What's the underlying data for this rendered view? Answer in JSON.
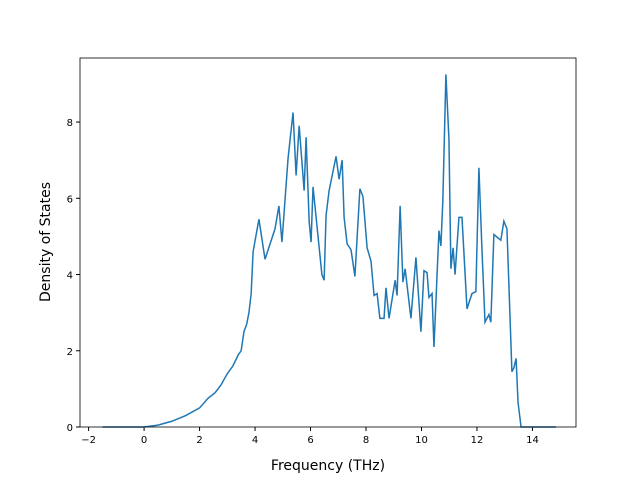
{
  "chart_data": {
    "type": "line",
    "xlabel": "Frequency (THz)",
    "ylabel": "Density of States",
    "x": [
      -1.5,
      0,
      0.5,
      1.0,
      1.5,
      2.0,
      2.3,
      2.56,
      2.77,
      3.0,
      3.2,
      3.4,
      3.5,
      3.6,
      3.7,
      3.78,
      3.86,
      3.93,
      4.14,
      4.36,
      4.72,
      4.86,
      4.97,
      5.19,
      5.37,
      5.48,
      5.59,
      5.77,
      5.84,
      5.95,
      6.02,
      6.09,
      6.41,
      6.49,
      6.56,
      6.67,
      6.92,
      7.03,
      7.14,
      7.21,
      7.32,
      7.46,
      7.6,
      7.78,
      7.89,
      8.04,
      8.18,
      8.29,
      8.4,
      8.5,
      8.65,
      8.72,
      8.83,
      9.05,
      9.12,
      9.23,
      9.33,
      9.41,
      9.62,
      9.8,
      9.98,
      10.09,
      10.2,
      10.27,
      10.38,
      10.45,
      10.63,
      10.7,
      10.77,
      10.88,
      10.99,
      11.06,
      11.14,
      11.21,
      11.35,
      11.46,
      11.64,
      11.82,
      11.96,
      12.07,
      12.18,
      12.29,
      12.43,
      12.5,
      12.61,
      12.86,
      12.97,
      13.08,
      13.26,
      13.33,
      13.41,
      13.48,
      13.59,
      14.85
    ],
    "series": [
      {
        "name": "DOS",
        "color": "#1f77b4",
        "values": [
          0,
          0,
          0.05,
          0.15,
          0.3,
          0.5,
          0.75,
          0.9,
          1.1,
          1.4,
          1.6,
          1.9,
          2.0,
          2.5,
          2.7,
          3.0,
          3.5,
          4.6,
          5.45,
          4.4,
          5.2,
          5.8,
          4.85,
          7.05,
          8.25,
          6.6,
          7.9,
          6.2,
          7.6,
          5.4,
          4.85,
          6.3,
          4.0,
          3.85,
          5.55,
          6.2,
          7.1,
          6.5,
          7.0,
          5.5,
          4.8,
          4.65,
          3.95,
          6.25,
          6.05,
          4.7,
          4.35,
          3.45,
          3.5,
          2.85,
          2.85,
          3.65,
          2.85,
          3.85,
          3.45,
          5.8,
          3.8,
          4.15,
          2.85,
          4.45,
          2.5,
          4.1,
          4.05,
          3.4,
          3.5,
          2.1,
          5.15,
          4.75,
          5.95,
          9.25,
          7.55,
          4.15,
          4.7,
          4.0,
          5.5,
          5.5,
          3.1,
          3.5,
          3.55,
          6.8,
          4.65,
          2.75,
          2.95,
          2.75,
          5.05,
          4.9,
          5.4,
          5.2,
          1.45,
          1.55,
          1.8,
          0.65,
          0,
          0
        ]
      }
    ],
    "xlim": [
      -2.31,
      15.57
    ],
    "ylim": [
      0,
      9.68
    ],
    "xticks": [
      {
        "value": -2,
        "label": "−2"
      },
      0,
      2,
      4,
      6,
      8,
      10,
      12,
      14
    ],
    "yticks": [
      0,
      2,
      4,
      6,
      8
    ]
  }
}
